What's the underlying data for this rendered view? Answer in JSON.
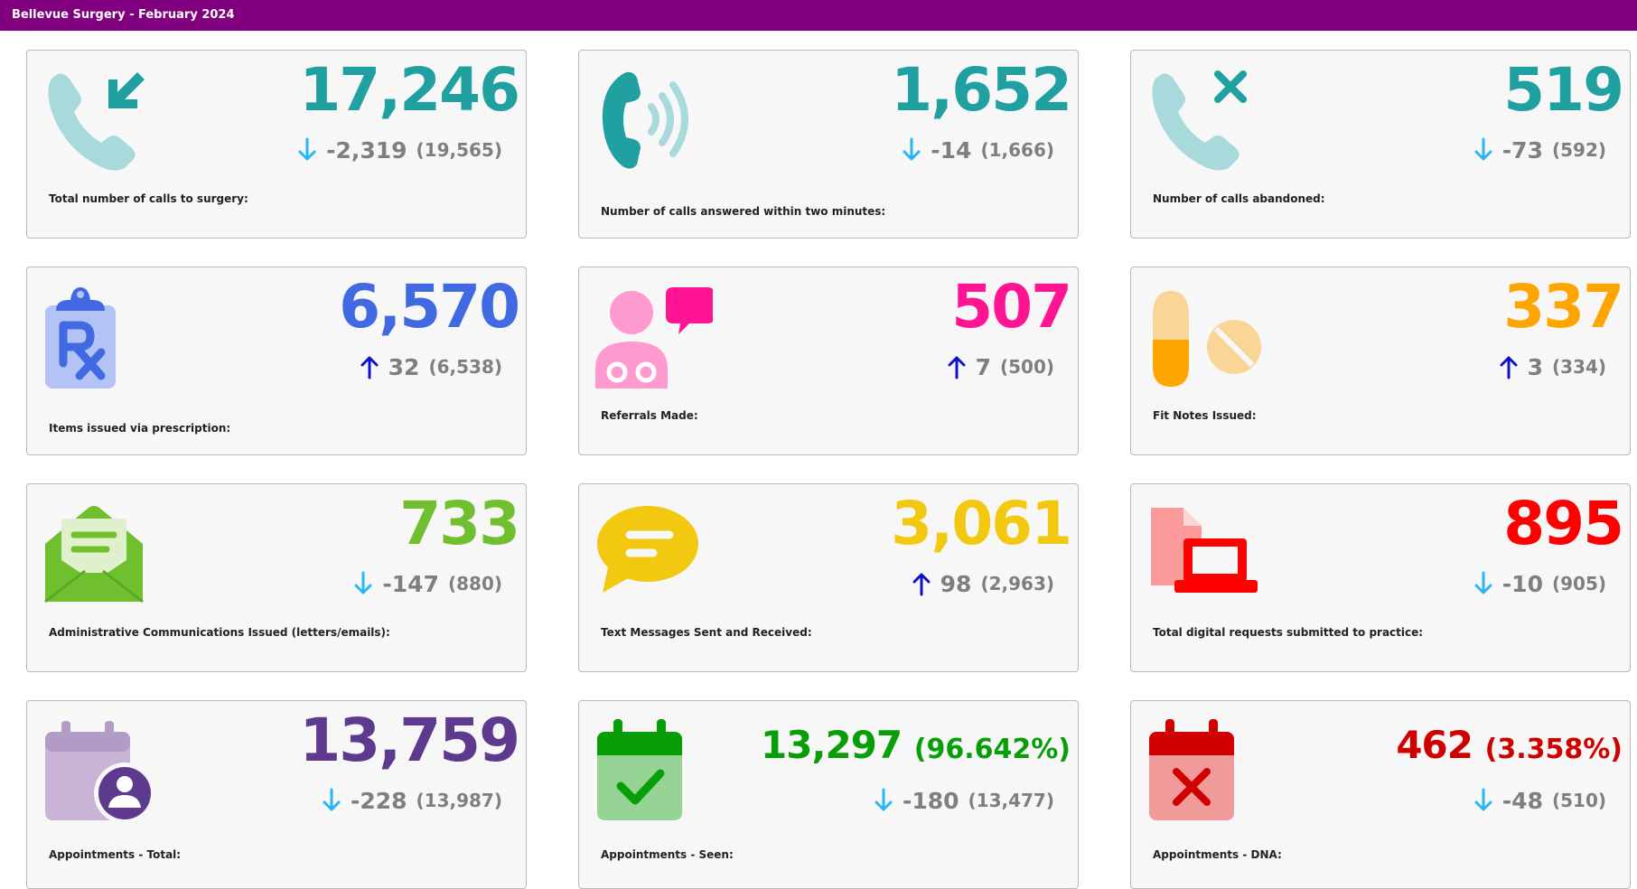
{
  "header": {
    "title": "Bellevue Surgery - February 2024",
    "color": "#800080"
  },
  "cards": [
    {
      "id": "calls-total",
      "icon": "phone-incoming-icon",
      "color": "#20A0A0",
      "value": "17,246",
      "direction": "down",
      "change": "-2,319",
      "previous": "(19,565)",
      "label": "Total number of calls to surgery:"
    },
    {
      "id": "calls-answered",
      "icon": "phone-ringing-icon",
      "color": "#20A0A0",
      "value": "1,652",
      "direction": "down",
      "change": "-14",
      "previous": "(1,666)",
      "label": "Number of calls answered within two minutes:"
    },
    {
      "id": "calls-abandoned",
      "icon": "phone-missed-icon",
      "color": "#20A0A0",
      "value": "519",
      "direction": "down",
      "change": "-73",
      "previous": "(592)",
      "label": "Number of calls abandoned:"
    },
    {
      "id": "prescriptions",
      "icon": "prescription-clipboard-icon",
      "color": "#4169E1",
      "value": "6,570",
      "direction": "up",
      "change": "32",
      "previous": "(6,538)",
      "label": "Items issued via prescription:"
    },
    {
      "id": "referrals",
      "icon": "doctor-chat-icon",
      "color": "#FF1493",
      "value": "507",
      "direction": "up",
      "change": "7",
      "previous": "(500)",
      "label": "Referrals Made:"
    },
    {
      "id": "fit-notes",
      "icon": "pills-icon",
      "color": "#FFA500",
      "value": "337",
      "direction": "up",
      "change": "3",
      "previous": "(334)",
      "label": "Fit Notes Issued:"
    },
    {
      "id": "admin-comms",
      "icon": "envelope-open-icon",
      "color": "#6FBF2F",
      "value": "733",
      "direction": "down",
      "change": "-147",
      "previous": "(880)",
      "label": "Administrative Communications Issued (letters/emails):"
    },
    {
      "id": "text-messages",
      "icon": "speech-bubble-icon",
      "color": "#F2C811",
      "value": "3,061",
      "direction": "up",
      "change": "98",
      "previous": "(2,963)",
      "label": "Text Messages Sent and Received:"
    },
    {
      "id": "digital-requests",
      "icon": "laptop-document-icon",
      "color": "#FF0000",
      "value": "895",
      "direction": "down",
      "change": "-10",
      "previous": "(905)",
      "label": "Total digital requests submitted to practice:"
    },
    {
      "id": "appointments-total",
      "icon": "calendar-user-icon",
      "color": "#5E3A8E",
      "value": "13,759",
      "direction": "down",
      "change": "-228",
      "previous": "(13,987)",
      "label": "Appointments - Total:"
    },
    {
      "id": "appointments-seen",
      "icon": "calendar-check-icon",
      "color": "#079E07",
      "value": "13,297",
      "percent": "(96.642%)",
      "direction": "down",
      "change": "-180",
      "previous": "(13,477)",
      "label": "Appointments - Seen:"
    },
    {
      "id": "appointments-dna",
      "icon": "calendar-x-icon",
      "color": "#D00000",
      "value": "462",
      "percent": "(3.358%)",
      "direction": "down",
      "change": "-48",
      "previous": "(510)",
      "label": "Appointments - DNA:"
    }
  ],
  "colors": {
    "arrow_down": "#29B6F6",
    "arrow_up": "#1010CC",
    "delta_text": "#7f7f7f"
  }
}
